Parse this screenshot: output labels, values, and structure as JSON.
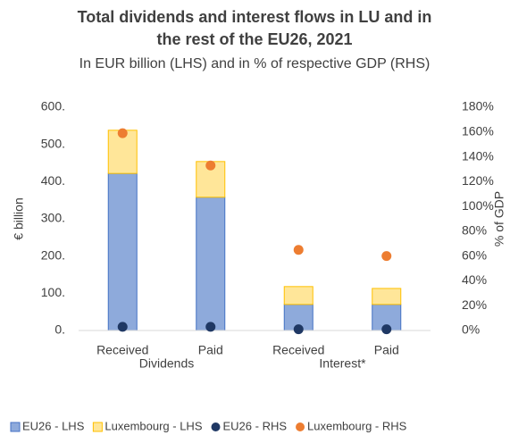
{
  "chart_data": {
    "type": "bar",
    "stacked": true,
    "title": [
      "Total dividends and interest flows in LU and in",
      "the rest of the EU26, 2021"
    ],
    "subtitle": "In EUR billion (LHS) and in % of respective GDP (RHS)",
    "ylabel": "€ billion",
    "y2label": "% of GDP",
    "categories": [
      "Received",
      "Paid",
      "Received",
      "Paid"
    ],
    "groups": [
      "Dividends",
      "Interest*"
    ],
    "series": [
      {
        "name": "EU26 - LHS",
        "type": "bar",
        "color": "#8eaadb",
        "edge": "#4472c4",
        "values": [
          422,
          358,
          70,
          70
        ]
      },
      {
        "name": "Luxembourg - LHS",
        "type": "bar",
        "color": "#ffe699",
        "edge": "#ffc000",
        "values": [
          116,
          96,
          48,
          43
        ]
      },
      {
        "name": "EU26 - RHS",
        "type": "scatter",
        "axis": "y2",
        "color": "#1f3864",
        "values": [
          3,
          3,
          1,
          1
        ]
      },
      {
        "name": "Luxembourg - RHS",
        "type": "scatter",
        "axis": "y2",
        "color": "#ed7d31",
        "values": [
          159,
          133,
          65,
          60
        ]
      }
    ],
    "ylim": [
      0,
      600
    ],
    "yticks": [
      {
        "value": 0,
        "label": "0."
      },
      {
        "value": 100,
        "label": "100."
      },
      {
        "value": 200,
        "label": "200."
      },
      {
        "value": 300,
        "label": "300."
      },
      {
        "value": 400,
        "label": "400."
      },
      {
        "value": 500,
        "label": "500."
      },
      {
        "value": 600,
        "label": "600."
      }
    ],
    "y2lim": [
      0,
      180
    ],
    "y2ticks": [
      {
        "value": 0,
        "label": "0%"
      },
      {
        "value": 20,
        "label": "20%"
      },
      {
        "value": 40,
        "label": "40%"
      },
      {
        "value": 60,
        "label": "60%"
      },
      {
        "value": 80,
        "label": "80%"
      },
      {
        "value": 100,
        "label": "100%"
      },
      {
        "value": 120,
        "label": "120%"
      },
      {
        "value": 140,
        "label": "140%"
      },
      {
        "value": 160,
        "label": "160%"
      },
      {
        "value": 180,
        "label": "180%"
      }
    ],
    "grid": false,
    "legend": "bottom"
  }
}
